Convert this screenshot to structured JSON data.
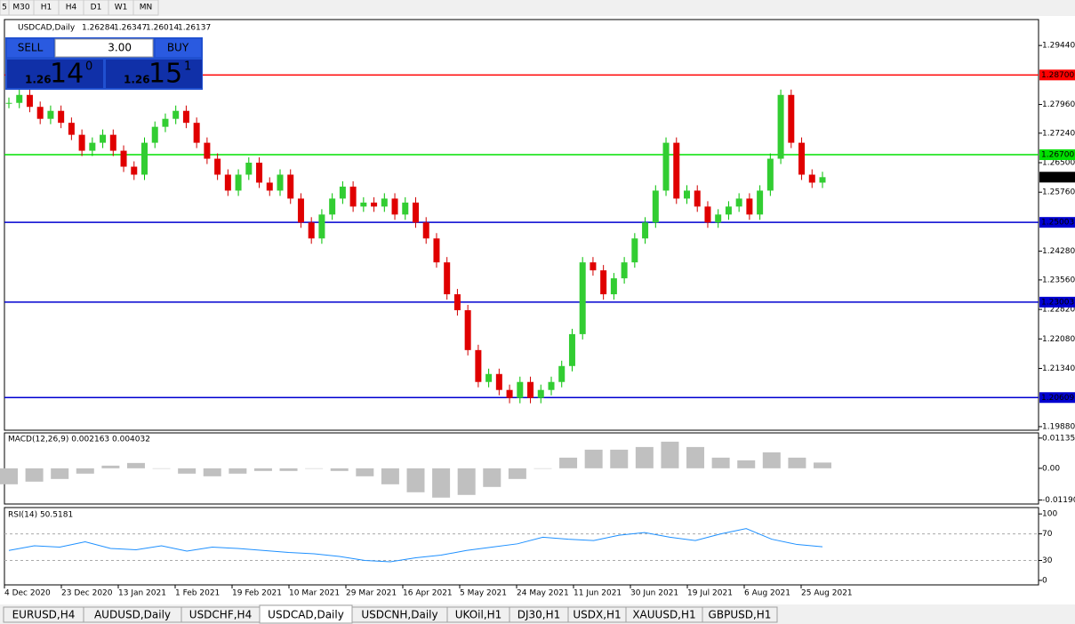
{
  "toolbar": {
    "timeframes": [
      "5",
      "M30",
      "H1",
      "H4",
      "D1",
      "W1",
      "MN"
    ]
  },
  "chart": {
    "symbol": "USDCAD,Daily",
    "ohlc": [
      "1.26284",
      "1.26347",
      "1.26014",
      "1.26137"
    ],
    "ylim": [
      1.1979,
      1.3009
    ],
    "yticks": [
      {
        "value": 1.2944,
        "label": "1.29440"
      },
      {
        "value": 1.2796,
        "label": "1.27960"
      },
      {
        "value": 1.2724,
        "label": "1.27240"
      },
      {
        "value": 1.265,
        "label": "1.26500"
      },
      {
        "value": 1.2576,
        "label": "1.25760"
      },
      {
        "value": 1.2428,
        "label": "1.24280"
      },
      {
        "value": 1.2356,
        "label": "1.23560"
      },
      {
        "value": 1.2282,
        "label": "1.22820"
      },
      {
        "value": 1.2208,
        "label": "1.22080"
      },
      {
        "value": 1.2134,
        "label": "1.21340"
      },
      {
        "value": 1.1988,
        "label": "1.19880"
      }
    ],
    "levels": [
      {
        "value": 1.287,
        "label": "1.28700",
        "color": "#ff0000"
      },
      {
        "value": 1.267,
        "label": "1.26700",
        "color": "#00e000"
      },
      {
        "value": 1.25003,
        "label": "1.25003",
        "color": "#0000d0"
      },
      {
        "value": 1.23003,
        "label": "1.23003",
        "color": "#0000d0"
      },
      {
        "value": 1.20609,
        "label": "1.20609",
        "color": "#0000d0"
      }
    ],
    "current": {
      "value": 1.26137,
      "label": "1.26137"
    },
    "closes": [
      1.28,
      1.282,
      1.279,
      1.276,
      1.278,
      1.275,
      1.272,
      1.268,
      1.27,
      1.272,
      1.268,
      1.264,
      1.262,
      1.27,
      1.274,
      1.276,
      1.278,
      1.275,
      1.27,
      1.266,
      1.262,
      1.258,
      1.262,
      1.265,
      1.26,
      1.258,
      1.262,
      1.256,
      1.25,
      1.246,
      1.252,
      1.256,
      1.259,
      1.254,
      1.255,
      1.254,
      1.256,
      1.252,
      1.255,
      1.25,
      1.246,
      1.24,
      1.232,
      1.228,
      1.218,
      1.21,
      1.212,
      1.208,
      1.206,
      1.21,
      1.206,
      1.208,
      1.21,
      1.214,
      1.222,
      1.24,
      1.238,
      1.232,
      1.236,
      1.24,
      1.246,
      1.25,
      1.258,
      1.27,
      1.256,
      1.258,
      1.254,
      1.25,
      1.252,
      1.254,
      1.256,
      1.252,
      1.258,
      1.266,
      1.282,
      1.27,
      1.262,
      1.26,
      1.26137
    ],
    "dates": [
      "4 Dec 2020",
      "23 Dec 2020",
      "13 Jan 2021",
      "1 Feb 2021",
      "19 Feb 2021",
      "10 Mar 2021",
      "29 Mar 2021",
      "16 Apr 2021",
      "5 May 2021",
      "24 May 2021",
      "11 Jun 2021",
      "30 Jun 2021",
      "19 Jul 2021",
      "6 Aug 2021",
      "25 Aug 2021"
    ]
  },
  "trade_panel": {
    "sell": "SELL",
    "buy": "BUY",
    "lots": "3.00",
    "bid": {
      "prefix": "1.26",
      "big": "14",
      "small": "0"
    },
    "ask": {
      "prefix": "1.26",
      "big": "15",
      "small": "1"
    }
  },
  "macd": {
    "label": "MACD(12,26,9) 0.002163 0.004032",
    "ylim": [
      -0.0134,
      0.0133
    ],
    "yticks": [
      {
        "value": 0.01135,
        "label": "0.01135"
      },
      {
        "value": 0,
        "label": "0.00"
      },
      {
        "value": -0.011904,
        "label": "-0.011904"
      }
    ],
    "values": [
      -0.006,
      -0.005,
      -0.004,
      -0.002,
      0.001,
      0.002,
      0.0,
      -0.002,
      -0.003,
      -0.002,
      -0.001,
      -0.001,
      0.0,
      -0.001,
      -0.003,
      -0.006,
      -0.009,
      -0.011,
      -0.01,
      -0.007,
      -0.004,
      0.0,
      0.004,
      0.007,
      0.007,
      0.008,
      0.01,
      0.008,
      0.004,
      0.003,
      0.006,
      0.004,
      0.002163
    ]
  },
  "rsi": {
    "label": "RSI(14) 50.5181",
    "ylim": [
      -6.8,
      109.6
    ],
    "yticks": [
      100,
      70,
      30,
      0
    ],
    "values": [
      45,
      52,
      50,
      58,
      48,
      46,
      52,
      44,
      50,
      48,
      45,
      42,
      40,
      36,
      30,
      28,
      34,
      38,
      45,
      50,
      55,
      65,
      62,
      60,
      68,
      72,
      65,
      60,
      70,
      78,
      62,
      54,
      50.5181
    ]
  },
  "tabs": [
    "EURUSD,H4",
    "AUDUSD,Daily",
    "USDCHF,H4",
    "USDCAD,Daily",
    "USDCNH,Daily",
    "UKOil,H1",
    "DJ30,H1",
    "USDX,H1",
    "XAUUSD,H1",
    "GBPUSD,H1"
  ],
  "active_tab": 3
}
